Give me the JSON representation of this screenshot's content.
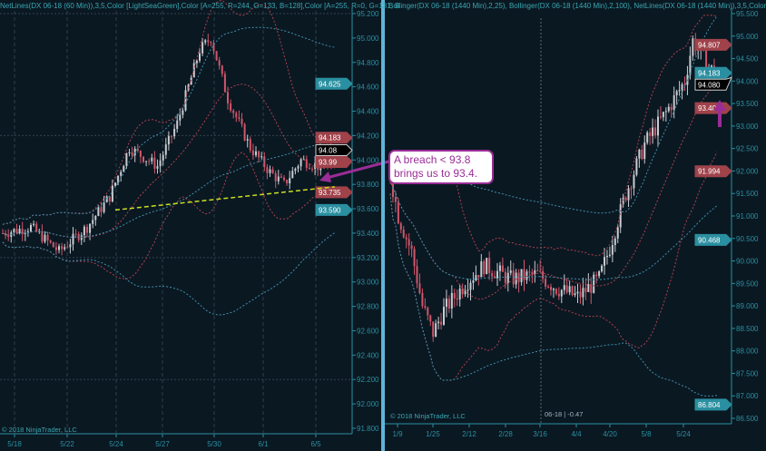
{
  "left_panel": {
    "header": "NetLines(DX 06-18 (60 Min)),3,5,Color [LightSeaGreen],Color [A=255, R=244, G=133, B=128],Color [A=255, R=0, G=131, B",
    "copyright": "© 2018 NinjaTrader, LLC",
    "y_axis": [
      "95.200",
      "95.000",
      "94.800",
      "94.600",
      "94.400",
      "94.200",
      "94.000",
      "93.800",
      "93.600",
      "93.400",
      "93.200",
      "93.000",
      "92.800",
      "92.600",
      "92.400",
      "92.200",
      "92.000",
      "91.800"
    ],
    "x_axis": [
      "5/18",
      "5/22",
      "5/24",
      "5/27",
      "5/30",
      "6/1",
      "6/5"
    ],
    "price_markers": [
      {
        "value": "94.625",
        "color": "#2a8fa0"
      },
      {
        "value": "94.183",
        "color": "#a0424a"
      },
      {
        "value": "94.08",
        "color": "#000000"
      },
      {
        "value": "93.99",
        "color": "#a0424a"
      },
      {
        "value": "93.735",
        "color": "#a0424a"
      },
      {
        "value": "93.590",
        "color": "#2a8fa0"
      }
    ],
    "price_keypoints": [
      [
        0,
        93.4
      ],
      [
        10,
        93.45
      ],
      [
        20,
        93.25
      ],
      [
        30,
        93.45
      ],
      [
        38,
        93.7
      ],
      [
        45,
        94.1
      ],
      [
        55,
        93.95
      ],
      [
        62,
        94.3
      ],
      [
        70,
        94.9
      ],
      [
        74,
        95.0
      ],
      [
        80,
        94.5
      ],
      [
        88,
        94.1
      ],
      [
        95,
        93.9
      ],
      [
        100,
        93.8
      ],
      [
        106,
        94.0
      ],
      [
        112,
        93.95
      ],
      [
        118,
        94.05
      ]
    ],
    "trendline": [
      [
        40,
        93.59
      ],
      [
        118,
        93.78
      ]
    ]
  },
  "right_panel": {
    "header": "Bollinger(DX 06-18 (1440 Min),2,25), Bollinger(DX 06-18 (1440 Min),2,100), NetLines(DX 06-18 (1440 Min)),3,5,Color",
    "copyright": "© 2018 NinjaTrader, LLC",
    "y_axis": [
      "95.500",
      "95.000",
      "94.500",
      "94.000",
      "93.500",
      "93.000",
      "92.500",
      "92.000",
      "91.500",
      "91.000",
      "90.500",
      "90.000",
      "89.500",
      "89.000",
      "88.500",
      "88.000",
      "87.500",
      "87.000",
      "86.500"
    ],
    "x_axis": [
      "1/9",
      "1/25",
      "2/12",
      "2/28",
      "3/16",
      "4/4",
      "4/20",
      "5/8",
      "5/24"
    ],
    "price_markers": [
      {
        "value": "94.807",
        "color": "#a0424a"
      },
      {
        "value": "94.183",
        "color": "#2a8fa0"
      },
      {
        "value": "94.080",
        "color": "#000000"
      },
      {
        "value": "93.400",
        "color": "#a0424a"
      },
      {
        "value": "91.994",
        "color": "#a0424a"
      },
      {
        "value": "90.468",
        "color": "#2a8fa0"
      },
      {
        "value": "86.804",
        "color": "#2a8fa0"
      }
    ],
    "price_keypoints": [
      [
        0,
        91.9
      ],
      [
        3,
        91.0
      ],
      [
        8,
        90.2
      ],
      [
        12,
        89.0
      ],
      [
        16,
        88.4
      ],
      [
        20,
        88.9
      ],
      [
        28,
        89.5
      ],
      [
        35,
        89.9
      ],
      [
        45,
        89.6
      ],
      [
        55,
        89.7
      ],
      [
        62,
        89.4
      ],
      [
        70,
        89.2
      ],
      [
        78,
        89.6
      ],
      [
        82,
        90.3
      ],
      [
        88,
        91.5
      ],
      [
        95,
        92.6
      ],
      [
        103,
        93.3
      ],
      [
        110,
        94.0
      ],
      [
        113,
        94.9
      ],
      [
        118,
        94.4
      ],
      [
        122,
        94.08
      ]
    ],
    "crosshair_info": "06-18 | -0.47"
  },
  "annotation": {
    "text": "A breach < 93.8 brings us to 93.4."
  },
  "colors": {
    "up": "#c8ccd0",
    "down": "#d0566a",
    "band_short": "#b0404a",
    "band_long": "#3f8fa8",
    "axis": "#2a8fa0",
    "trend": "#c8e020",
    "arrow": "#9a2d96"
  }
}
